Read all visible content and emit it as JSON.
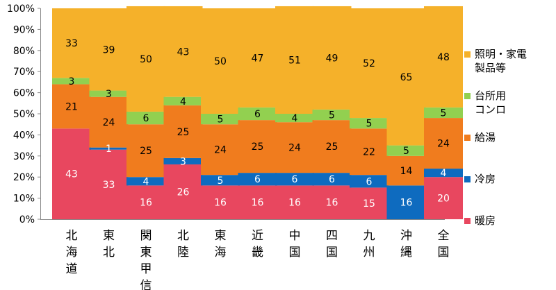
{
  "chart_data": {
    "type": "bar",
    "stacked": true,
    "normalized": true,
    "categories": [
      "北海道",
      "東北",
      "関東甲信",
      "北陸",
      "東海",
      "近畿",
      "中国",
      "四国",
      "九州",
      "沖縄",
      "全国"
    ],
    "series": [
      {
        "name": "暖房",
        "color": "#e8475f",
        "values": [
          43,
          33,
          16,
          26,
          16,
          16,
          16,
          16,
          15,
          0,
          20
        ]
      },
      {
        "name": "冷房",
        "color": "#0e6bbf",
        "values": [
          0,
          1,
          4,
          3,
          5,
          6,
          6,
          6,
          6,
          16,
          4
        ]
      },
      {
        "name": "給湯",
        "color": "#f07c1e",
        "values": [
          21,
          24,
          25,
          25,
          24,
          25,
          24,
          25,
          22,
          14,
          24
        ]
      },
      {
        "name": "台所用コンロ",
        "color": "#92d050",
        "values": [
          3,
          3,
          6,
          4,
          5,
          6,
          4,
          5,
          5,
          5,
          5
        ]
      },
      {
        "name": "照明・家電製品等",
        "color": "#f5b12a",
        "values": [
          33,
          39,
          50,
          43,
          50,
          47,
          51,
          49,
          52,
          65,
          48
        ]
      }
    ],
    "legend_lines": {
      "暖房": [
        "暖房"
      ],
      "冷房": [
        "冷房"
      ],
      "給湯": [
        "給湯"
      ],
      "台所用コンロ": [
        "台所用",
        "コンロ"
      ],
      "照明・家電製品等": [
        "照明・家電",
        "製品等"
      ]
    },
    "y_ticks": [
      "0%",
      "10%",
      "20%",
      "30%",
      "40%",
      "50%",
      "60%",
      "70%",
      "80%",
      "90%",
      "100%"
    ],
    "ylim": [
      0,
      100
    ],
    "grid": false,
    "legend": "right"
  }
}
